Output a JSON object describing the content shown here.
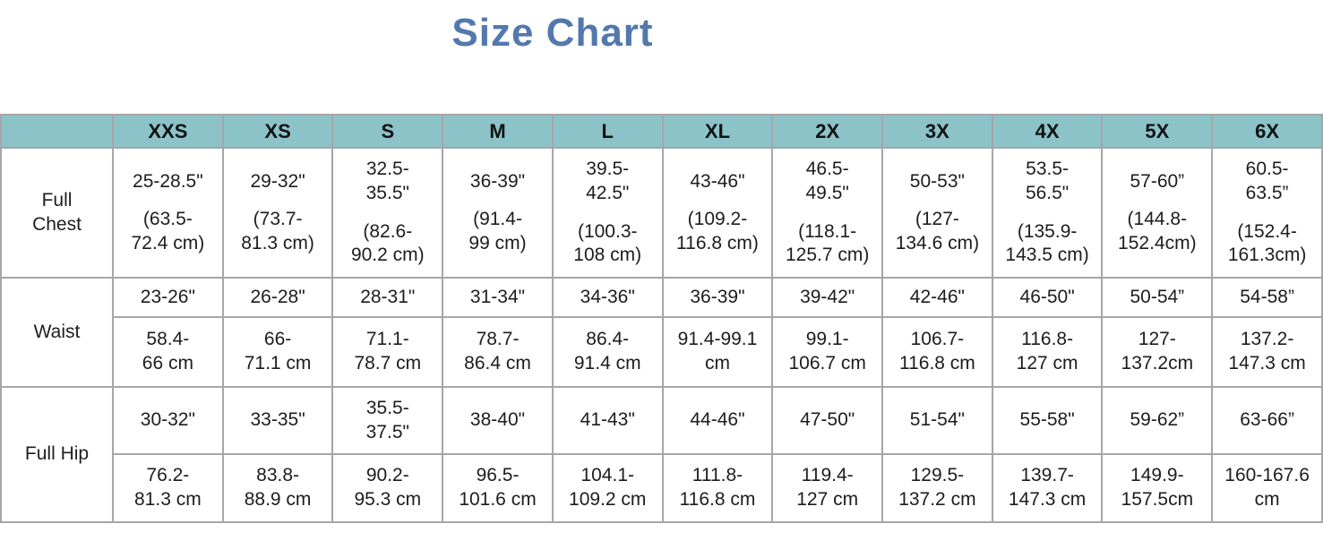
{
  "title": "Size Chart",
  "colors": {
    "title_text": "#5278ae",
    "header_bg": "#8cc3c9",
    "border": "#a6a6a8",
    "cell_text": "#1d1d1d"
  },
  "table": {
    "corner": "",
    "sizes": [
      "XXS",
      "XS",
      "S",
      "M",
      "L",
      "XL",
      "2X",
      "3X",
      "4X",
      "5X",
      "6X"
    ],
    "full_chest": {
      "label": "Full\nChest",
      "inches": [
        "25-28.5\"",
        "29-32\"",
        "32.5-\n35.5\"",
        "36-39\"",
        "39.5-\n42.5\"",
        "43-46\"",
        "46.5-\n49.5\"",
        "50-53\"",
        "53.5-\n56.5\"",
        "57-60”",
        "60.5-\n63.5”"
      ],
      "cm": [
        "(63.5-\n72.4 cm)",
        "(73.7-\n81.3 cm)",
        "(82.6-\n90.2 cm)",
        "(91.4-\n99 cm)",
        "(100.3-\n108 cm)",
        "(109.2-\n116.8 cm)",
        "(118.1-\n125.7 cm)",
        "(127-\n134.6 cm)",
        "(135.9-\n143.5 cm)",
        "(144.8-\n152.4cm)",
        "(152.4-\n161.3cm)"
      ]
    },
    "waist": {
      "label": "Waist",
      "inches": [
        "23-26\"",
        "26-28\"",
        "28-31\"",
        "31-34\"",
        "34-36\"",
        "36-39\"",
        "39-42\"",
        "42-46\"",
        "46-50\"",
        "50-54”",
        "54-58”"
      ],
      "cm": [
        "58.4-\n66 cm",
        "66-\n71.1 cm",
        "71.1-\n78.7 cm",
        "78.7-\n86.4 cm",
        "86.4-\n91.4 cm",
        "91.4-99.1\ncm",
        "99.1-\n106.7 cm",
        "106.7-\n116.8 cm",
        "116.8-\n127 cm",
        "127-\n137.2cm",
        "137.2-\n147.3 cm"
      ]
    },
    "full_hip": {
      "label": "Full Hip",
      "inches": [
        "30-32\"",
        "33-35\"",
        "35.5-\n37.5\"",
        "38-40\"",
        "41-43\"",
        "44-46\"",
        "47-50\"",
        "51-54\"",
        "55-58\"",
        "59-62”",
        "63-66”"
      ],
      "cm": [
        "76.2-\n81.3 cm",
        "83.8-\n88.9 cm",
        "90.2-\n95.3 cm",
        "96.5-\n101.6 cm",
        "104.1-\n109.2 cm",
        "111.8-\n116.8 cm",
        "119.4-\n127 cm",
        "129.5-\n137.2 cm",
        "139.7-\n147.3 cm",
        "149.9-\n157.5cm",
        "160-167.6\ncm"
      ]
    }
  },
  "chart_data": {
    "type": "table",
    "title": "Size Chart",
    "columns": [
      "XXS",
      "XS",
      "S",
      "M",
      "L",
      "XL",
      "2X",
      "3X",
      "4X",
      "5X",
      "6X"
    ],
    "rows": [
      {
        "label": "Full Chest",
        "inches": [
          "25-28.5\"",
          "29-32\"",
          "32.5-35.5\"",
          "36-39\"",
          "39.5-42.5\"",
          "43-46\"",
          "46.5-49.5\"",
          "50-53\"",
          "53.5-56.5\"",
          "57-60”",
          "60.5-63.5”"
        ],
        "cm": [
          "63.5-72.4 cm",
          "73.7-81.3 cm",
          "82.6-90.2 cm",
          "91.4-99 cm",
          "100.3-108 cm",
          "109.2-116.8 cm",
          "118.1-125.7 cm",
          "127-134.6 cm",
          "135.9-143.5 cm",
          "144.8-152.4 cm",
          "152.4-161.3 cm"
        ]
      },
      {
        "label": "Waist",
        "inches": [
          "23-26\"",
          "26-28\"",
          "28-31\"",
          "31-34\"",
          "34-36\"",
          "36-39\"",
          "39-42\"",
          "42-46\"",
          "46-50\"",
          "50-54”",
          "54-58”"
        ],
        "cm": [
          "58.4-66 cm",
          "66-71.1 cm",
          "71.1-78.7 cm",
          "78.7-86.4 cm",
          "86.4-91.4 cm",
          "91.4-99.1 cm",
          "99.1-106.7 cm",
          "106.7-116.8 cm",
          "116.8-127 cm",
          "127-137.2 cm",
          "137.2-147.3 cm"
        ]
      },
      {
        "label": "Full Hip",
        "inches": [
          "30-32\"",
          "33-35\"",
          "35.5-37.5\"",
          "38-40\"",
          "41-43\"",
          "44-46\"",
          "47-50\"",
          "51-54\"",
          "55-58\"",
          "59-62”",
          "63-66”"
        ],
        "cm": [
          "76.2-81.3 cm",
          "83.8-88.9 cm",
          "90.2-95.3 cm",
          "96.5-101.6 cm",
          "104.1-109.2 cm",
          "111.8-116.8 cm",
          "119.4-127 cm",
          "129.5-137.2 cm",
          "139.7-147.3 cm",
          "149.9-157.5 cm",
          "160-167.6 cm"
        ]
      }
    ]
  }
}
